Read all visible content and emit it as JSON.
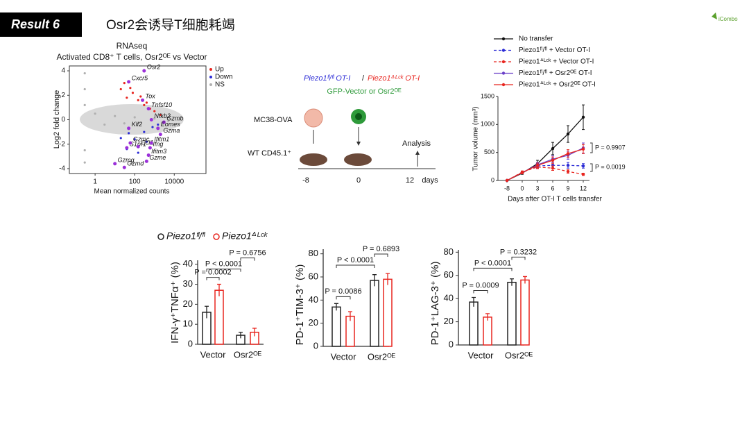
{
  "header": {
    "badge": "Result 6",
    "title": "Osr2会诱导T细胞耗竭",
    "logo": "iCombo"
  },
  "schematic": {
    "line1_left": "Piezo1ᶠˡ/ᶠˡ OT-I",
    "separator": "/",
    "line1_right": "Piezo1ᐞᴸᶜᵏ OT-I",
    "line2": "GFP-Vector or Osr2ᴼᴱ",
    "tumor": "MC38-OVA",
    "host": "WT CD45.1⁺",
    "analysis": "Analysis",
    "timeline": [
      "-8",
      "0",
      "12"
    ],
    "timeline_unit": "days"
  },
  "bar_legend": {
    "names": [
      "Piezo1ᶠˡ/ᶠˡ",
      "Piezo1ᐞᴸᶜᵏ"
    ],
    "colors": [
      "#222222",
      "#e8251f"
    ]
  },
  "chart_data": [
    {
      "type": "scatter",
      "title": "RNAseq",
      "subtitle": "Activated CD8⁺ T cells, Osr2ᴼᴱ vs Vector",
      "x_label": "Mean normalized counts",
      "y_label": "Log2 fold change",
      "xscale": "log",
      "xlim": [
        0.05,
        400000
      ],
      "ylim": [
        -4.4,
        4.4
      ],
      "xticks": [
        1,
        100,
        10000
      ],
      "yticks": [
        -4,
        -2,
        0,
        2,
        4
      ],
      "legend": "top-right",
      "series": [
        {
          "name": "Up",
          "color": "#e8251f",
          "x": [
            20,
            40,
            80,
            150,
            300,
            600,
            1000,
            2000,
            30,
            60,
            200,
            400
          ],
          "y": [
            2.5,
            1.8,
            2.2,
            1.6,
            1.2,
            0.9,
            0.7,
            0.4,
            3.0,
            2.6,
            1.9,
            1.4
          ]
        },
        {
          "name": "Down",
          "color": "#2b2bd6",
          "x": [
            20,
            50,
            100,
            300,
            800,
            1500,
            3000,
            40,
            150,
            400
          ],
          "y": [
            -1.5,
            -1.1,
            -1.6,
            -1.0,
            -0.6,
            -0.4,
            -0.2,
            -2.4,
            -2.7,
            -1.8
          ]
        },
        {
          "name": "NS",
          "color": "#b0b0b0",
          "x": [
            0.3,
            0.3,
            0.3,
            0.3,
            0.3,
            1,
            3,
            10,
            30,
            100,
            1000,
            5000
          ],
          "y": [
            3.8,
            2.5,
            -2.5,
            -3.5,
            1.2,
            0.5,
            -0.4,
            0.3,
            -0.3,
            0.2,
            0.1,
            -0.1
          ]
        }
      ],
      "labeled_genes": {
        "color": "#9b30d9",
        "names": [
          "Osr2",
          "Cxcr5",
          "Tox",
          "Tnfsf10",
          "Gzmb",
          "Eomes",
          "Gzma",
          "Nfkb2",
          "Klf2",
          "S1pr1",
          "Ccl1",
          "Ifng",
          "Ifitm1",
          "Ifitm3",
          "Gzmc",
          "Gzmg",
          "Gzmd",
          "Gzme"
        ],
        "x": [
          300,
          50,
          250,
          500,
          3000,
          1500,
          2000,
          700,
          50,
          40,
          150,
          600,
          700,
          500,
          60,
          10,
          30,
          400
        ],
        "y": [
          4.0,
          3.1,
          1.6,
          0.9,
          -0.2,
          -0.7,
          -1.2,
          0.0,
          -0.7,
          -2.3,
          -2.2,
          -2.3,
          -1.9,
          -2.9,
          -1.9,
          -3.6,
          -3.9,
          -3.4
        ]
      }
    },
    {
      "type": "line",
      "x_label": "Days after OT-I T cells transfer",
      "y_label": "Tumor volume (mm³)",
      "categories": [
        "-8",
        "0",
        "3",
        "6",
        "9",
        "12"
      ],
      "ylim": [
        0,
        1500
      ],
      "yticks": [
        0,
        500,
        1000,
        1500
      ],
      "series": [
        {
          "name": "No transfer",
          "color": "#111111",
          "dash": "none",
          "values": [
            0,
            130,
            300,
            570,
            830,
            1130
          ],
          "errors": [
            0,
            20,
            60,
            110,
            150,
            220
          ]
        },
        {
          "name": "Piezo1ᶠˡ/ᶠˡ + Vector OT-I",
          "color": "#2b2bd6",
          "dash": "4 3",
          "values": [
            0,
            140,
            260,
            270,
            270,
            260
          ],
          "errors": [
            0,
            20,
            40,
            50,
            50,
            40
          ]
        },
        {
          "name": "Piezo1ᐞᴸᶜᵏ + Vector OT-I",
          "color": "#e8251f",
          "dash": "4 3",
          "values": [
            0,
            150,
            240,
            220,
            160,
            110
          ],
          "errors": [
            0,
            20,
            30,
            40,
            30,
            20
          ]
        },
        {
          "name": "Piezo1ᶠˡ/ᶠˡ + Osr2ᴼᴱ OT-I",
          "color": "#6a3fc8",
          "dash": "none",
          "values": [
            0,
            140,
            280,
            380,
            450,
            580
          ],
          "errors": [
            0,
            20,
            40,
            60,
            70,
            90
          ]
        },
        {
          "name": "Piezo1ᐞᴸᶜᵏ + Osr2ᴼᴱ OT-I",
          "color": "#e8251f",
          "dash": "none",
          "values": [
            0,
            140,
            270,
            360,
            480,
            560
          ],
          "errors": [
            0,
            20,
            40,
            60,
            70,
            80
          ]
        }
      ],
      "annotations": [
        "P = 0.9907",
        "P = 0.0019"
      ]
    },
    {
      "type": "bar",
      "y_label": "IFN-γ⁺TNFα⁺ (%)",
      "categories": [
        "Vector",
        "Osr2ᴼᴱ"
      ],
      "ylim": [
        0,
        42
      ],
      "yticks": [
        0,
        10,
        20,
        30,
        40
      ],
      "series": [
        {
          "values": [
            16,
            4.5
          ],
          "errors": [
            3,
            1.5
          ]
        },
        {
          "values": [
            27,
            6
          ],
          "errors": [
            3,
            2
          ]
        }
      ],
      "annotations": [
        "P < 0.0001",
        "P = 0.0002",
        "P = 0.6756"
      ]
    },
    {
      "type": "bar",
      "y_label": "PD-1⁺TIM-3⁺ (%)",
      "categories": [
        "Vector",
        "Osr2ᴼᴱ"
      ],
      "ylim": [
        0,
        84
      ],
      "yticks": [
        0,
        20,
        40,
        60,
        80
      ],
      "series": [
        {
          "values": [
            34,
            57
          ],
          "errors": [
            3,
            5
          ]
        },
        {
          "values": [
            26,
            58
          ],
          "errors": [
            4,
            5
          ]
        }
      ],
      "annotations": [
        "P < 0.0001",
        "P = 0.0086",
        "P = 0.6893"
      ]
    },
    {
      "type": "bar",
      "y_label": "PD-1⁺LAG-3⁺ (%)",
      "categories": [
        "Vector",
        "Osr2ᴼᴱ"
      ],
      "ylim": [
        0,
        82
      ],
      "yticks": [
        0,
        20,
        40,
        60,
        80
      ],
      "series": [
        {
          "values": [
            37,
            54
          ],
          "errors": [
            4,
            3
          ]
        },
        {
          "values": [
            24,
            56
          ],
          "errors": [
            3,
            3
          ]
        }
      ],
      "annotations": [
        "P < 0.0001",
        "P = 0.0009",
        "P = 0.3232"
      ]
    }
  ]
}
